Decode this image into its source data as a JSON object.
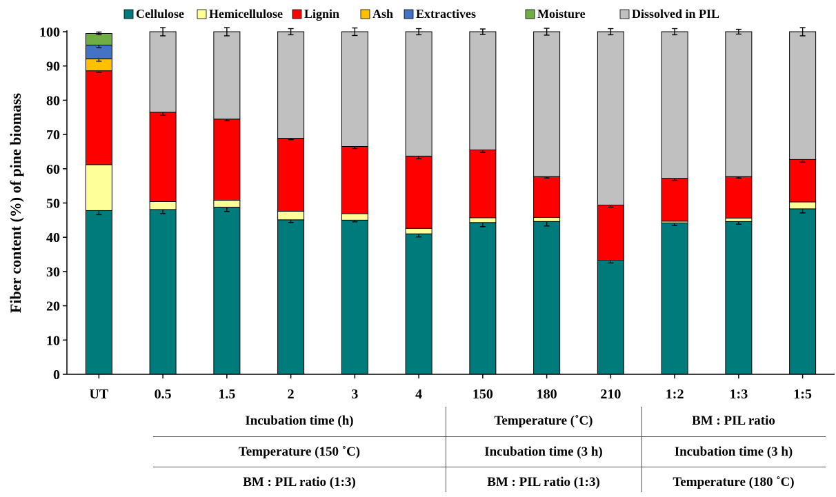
{
  "chart_data": {
    "type": "bar",
    "stacked": true,
    "ylabel": "Fiber content (%) of pine biomass",
    "xlabel": "",
    "ylim": [
      0,
      100
    ],
    "yticks": [
      0,
      10,
      20,
      30,
      40,
      50,
      60,
      70,
      80,
      90,
      100
    ],
    "legend_position": "top",
    "categories": [
      "UT",
      "0.5",
      "1.5",
      "2",
      "3",
      "4",
      "150",
      "180",
      "210",
      "1:2",
      "1:3",
      "1:5"
    ],
    "series": [
      {
        "name": "Cellulose",
        "color": "#007b7b",
        "values": [
          47.8,
          48.1,
          48.8,
          45.1,
          45.0,
          41.0,
          44.3,
          44.6,
          33.3,
          44.2,
          44.6,
          48.3
        ],
        "errors": [
          1.2,
          1.2,
          1.3,
          0.8,
          0.5,
          0.9,
          1.2,
          1.3,
          0.8,
          0.8,
          0.8,
          1.2
        ]
      },
      {
        "name": "Hemicellulose",
        "color": "#ffff99",
        "values": [
          13.4,
          2.3,
          2.0,
          2.5,
          1.9,
          1.6,
          1.4,
          1.2,
          0,
          0.5,
          1.0,
          2.0
        ],
        "errors": [
          0,
          0,
          0,
          0,
          0,
          0,
          0,
          0,
          0,
          0,
          0,
          0
        ]
      },
      {
        "name": "Lignin",
        "color": "#ff0000",
        "values": [
          27.4,
          26.1,
          23.7,
          21.3,
          19.6,
          21.1,
          19.8,
          11.9,
          16.1,
          12.5,
          12.1,
          12.4
        ],
        "errors": [
          0.5,
          0.9,
          0.5,
          0.4,
          0.6,
          0.8,
          0.7,
          0.4,
          0.6,
          0.6,
          0.4,
          0.8
        ]
      },
      {
        "name": "Ash",
        "color": "#ffc000",
        "values": [
          3.5,
          0,
          0,
          0,
          0,
          0,
          0,
          0,
          0,
          0,
          0,
          0
        ],
        "errors": [
          0.7,
          0,
          0,
          0,
          0,
          0,
          0,
          0,
          0,
          0,
          0,
          0
        ]
      },
      {
        "name": "Extractives",
        "color": "#4472c4",
        "values": [
          4.0,
          0,
          0,
          0,
          0,
          0,
          0,
          0,
          0,
          0,
          0,
          0
        ],
        "errors": [
          0.8,
          0,
          0,
          0,
          0,
          0,
          0,
          0,
          0,
          0,
          0,
          0
        ]
      },
      {
        "name": "Moisture",
        "color": "#70ad47",
        "values": [
          3.4,
          0,
          0,
          0,
          0,
          0,
          0,
          0,
          0,
          0,
          0,
          0
        ],
        "errors": [
          0.4,
          0,
          0,
          0,
          0,
          0,
          0,
          0,
          0,
          0,
          0,
          0
        ]
      },
      {
        "name": "Dissolved in PIL",
        "color": "#c0c0c0",
        "values": [
          0,
          23.5,
          25.5,
          31.1,
          33.5,
          36.3,
          34.5,
          42.3,
          50.6,
          42.8,
          42.3,
          37.3
        ],
        "errors": [
          0,
          1.2,
          1.2,
          0.9,
          1.1,
          0.9,
          0.8,
          1.0,
          0.9,
          0.9,
          0.7,
          1.2
        ]
      }
    ]
  },
  "conditions_table": {
    "row1": [
      "Incubation time (h)",
      "Temperature (˚C)",
      "BM : PIL ratio"
    ],
    "row2": [
      "Temperature (150 ˚C)",
      "Incubation time (3 h)",
      "Incubation time (3 h)"
    ],
    "row3": [
      "BM : PIL ratio (1:3)",
      "BM : PIL ratio (1:3)",
      "Temperature (180 ˚C)"
    ]
  }
}
